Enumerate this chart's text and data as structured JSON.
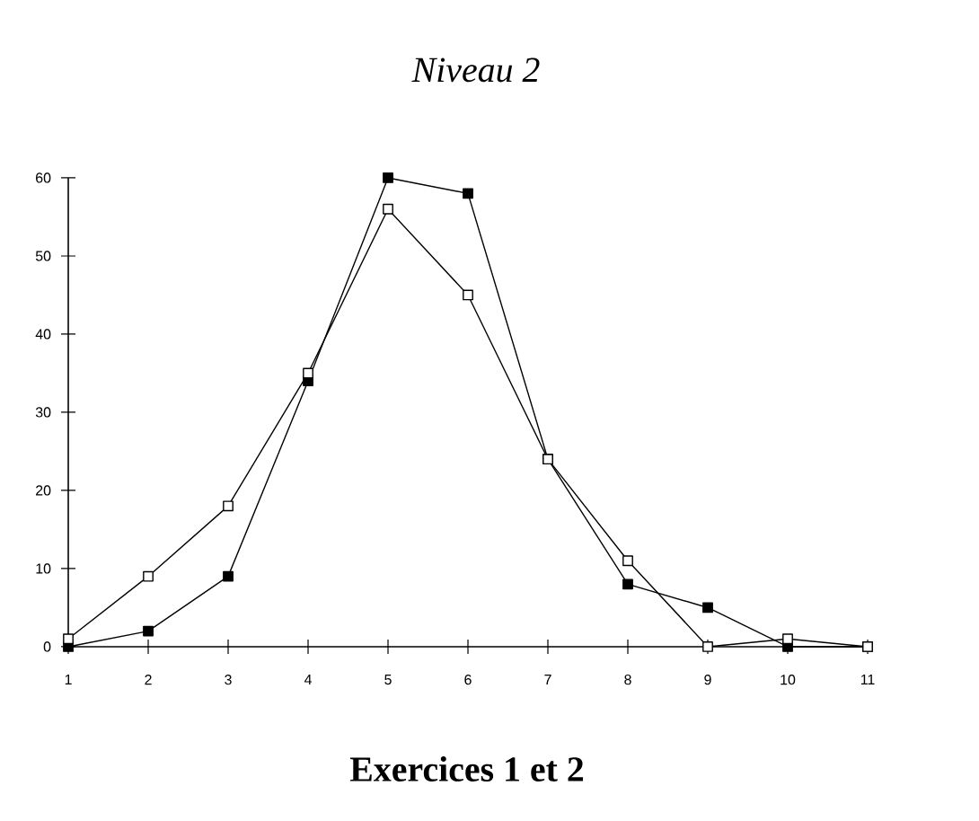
{
  "chart_data": {
    "type": "line",
    "title": "Niveau 2",
    "xlabel": "Exercices 1 et 2",
    "x": [
      1,
      2,
      3,
      4,
      5,
      6,
      7,
      8,
      9,
      10,
      11
    ],
    "series": [
      {
        "color": "#000000",
        "values": [
          0,
          2,
          9,
          34,
          60,
          58,
          24,
          8,
          5,
          0,
          0
        ]
      },
      {
        "color": "#000000",
        "values": [
          1,
          9,
          18,
          35,
          56,
          45,
          24,
          11,
          0,
          1,
          0
        ]
      }
    ],
    "xlim": [
      1,
      11
    ],
    "xticks": [
      1,
      2,
      3,
      4,
      5,
      6,
      7,
      8,
      9,
      10,
      11
    ],
    "ylim": [
      0,
      60
    ],
    "yticks": [
      0,
      10,
      20,
      30,
      40,
      50,
      60
    ],
    "grid": false,
    "legend": false,
    "marker": "square",
    "line_style": "solid"
  }
}
